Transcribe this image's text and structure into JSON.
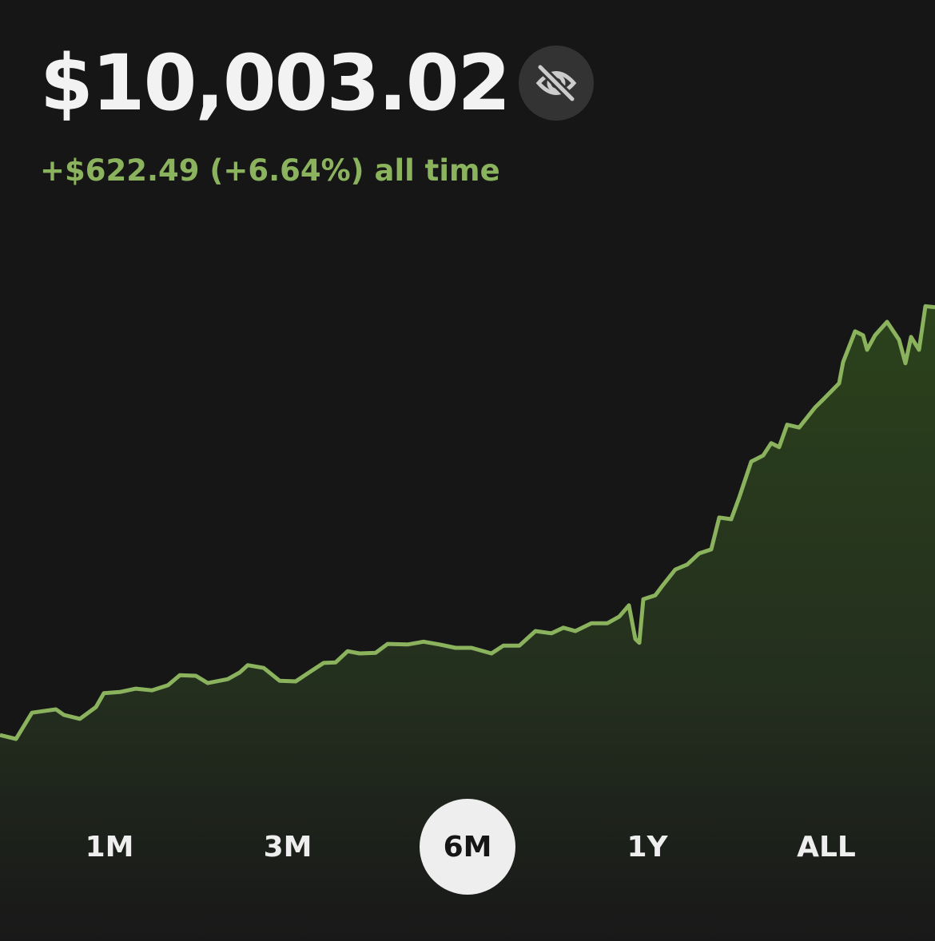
{
  "balance": "$10,003.02",
  "change": "+$622.49 (+6.64%) all time",
  "chart_data": {
    "type": "line",
    "color": "#8bb35e",
    "x": [
      0,
      20,
      40,
      70,
      80,
      100,
      120,
      130,
      150,
      170,
      190,
      210,
      225,
      245,
      260,
      285,
      300,
      310,
      330,
      350,
      370,
      390,
      405,
      420,
      435,
      450,
      470,
      485,
      510,
      530,
      550,
      570,
      590,
      615,
      630,
      650,
      670,
      690,
      705,
      720,
      740,
      760,
      775,
      787,
      795,
      800,
      805,
      820,
      830,
      845,
      860,
      875,
      890,
      900,
      915,
      925,
      940,
      955,
      965,
      975,
      985,
      1000,
      1020,
      1030,
      1050,
      1055,
      1070,
      1080,
      1085,
      1095,
      1110,
      1125,
      1133,
      1140,
      1150,
      1158,
      1170
    ],
    "values": [
      11.4,
      10.7,
      15.4,
      16,
      15,
      14.3,
      16.4,
      18.9,
      19.1,
      19.7,
      19.4,
      20.3,
      22.1,
      22,
      20.7,
      21.4,
      22.6,
      23.9,
      23.4,
      21.1,
      21,
      22.9,
      24.3,
      24.4,
      26.4,
      26,
      26.1,
      27.7,
      27.6,
      28.1,
      27.6,
      27,
      27,
      26,
      27.4,
      27.4,
      30,
      29.6,
      30.6,
      30,
      31.4,
      31.4,
      32.6,
      34.6,
      28.6,
      27.9,
      35.7,
      36.4,
      38.3,
      41,
      41.9,
      43.9,
      44.6,
      50.3,
      50,
      53.9,
      60.3,
      61.4,
      63.6,
      62.9,
      66.9,
      66.4,
      70,
      71.4,
      74.3,
      78.1,
      83.6,
      82.9,
      80.3,
      82.9,
      85.3,
      82.1,
      77.9,
      82.6,
      80.3,
      88.1,
      87.9
    ],
    "xlim": [
      0,
      1170
    ],
    "ylim": [
      0,
      100
    ]
  },
  "ranges": [
    "1M",
    "3M",
    "6M",
    "1Y",
    "ALL"
  ],
  "selected_range": 2
}
